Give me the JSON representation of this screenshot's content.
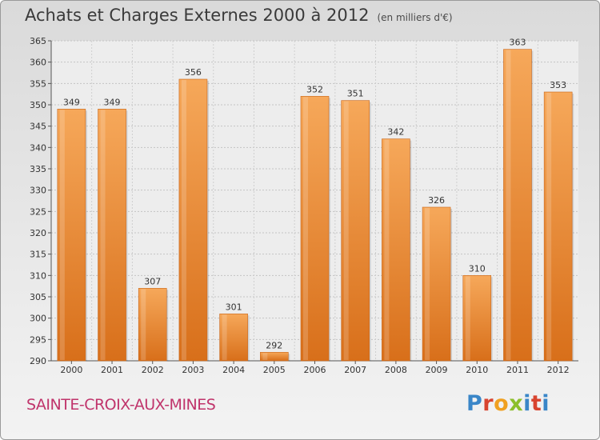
{
  "header": {
    "title": "Achats et Charges Externes 2000 à 2012",
    "unit": "(en milliers d'€)"
  },
  "footer": {
    "town": "SAINTE-CROIX-AUX-MINES",
    "logo": [
      "P",
      "r",
      "o",
      "x",
      "i",
      "t",
      "i"
    ]
  },
  "colors": {
    "bar_light": "#f6a85a",
    "bar_dark": "#d86f1a",
    "town": "#c0346b"
  },
  "chart_data": {
    "type": "bar",
    "title": "Achats et Charges Externes 2000 à 2012",
    "subtitle": "(en milliers d'€)",
    "categories": [
      "2000",
      "2001",
      "2002",
      "2003",
      "2004",
      "2005",
      "2006",
      "2007",
      "2008",
      "2009",
      "2010",
      "2011",
      "2012"
    ],
    "values": [
      349,
      349,
      307,
      356,
      301,
      292,
      352,
      351,
      342,
      326,
      310,
      363,
      353
    ],
    "ylim": [
      290,
      365
    ],
    "yticks": [
      290,
      295,
      300,
      305,
      310,
      315,
      320,
      325,
      330,
      335,
      340,
      345,
      350,
      355,
      360,
      365
    ],
    "grid": true,
    "xlabel": "",
    "ylabel": ""
  }
}
